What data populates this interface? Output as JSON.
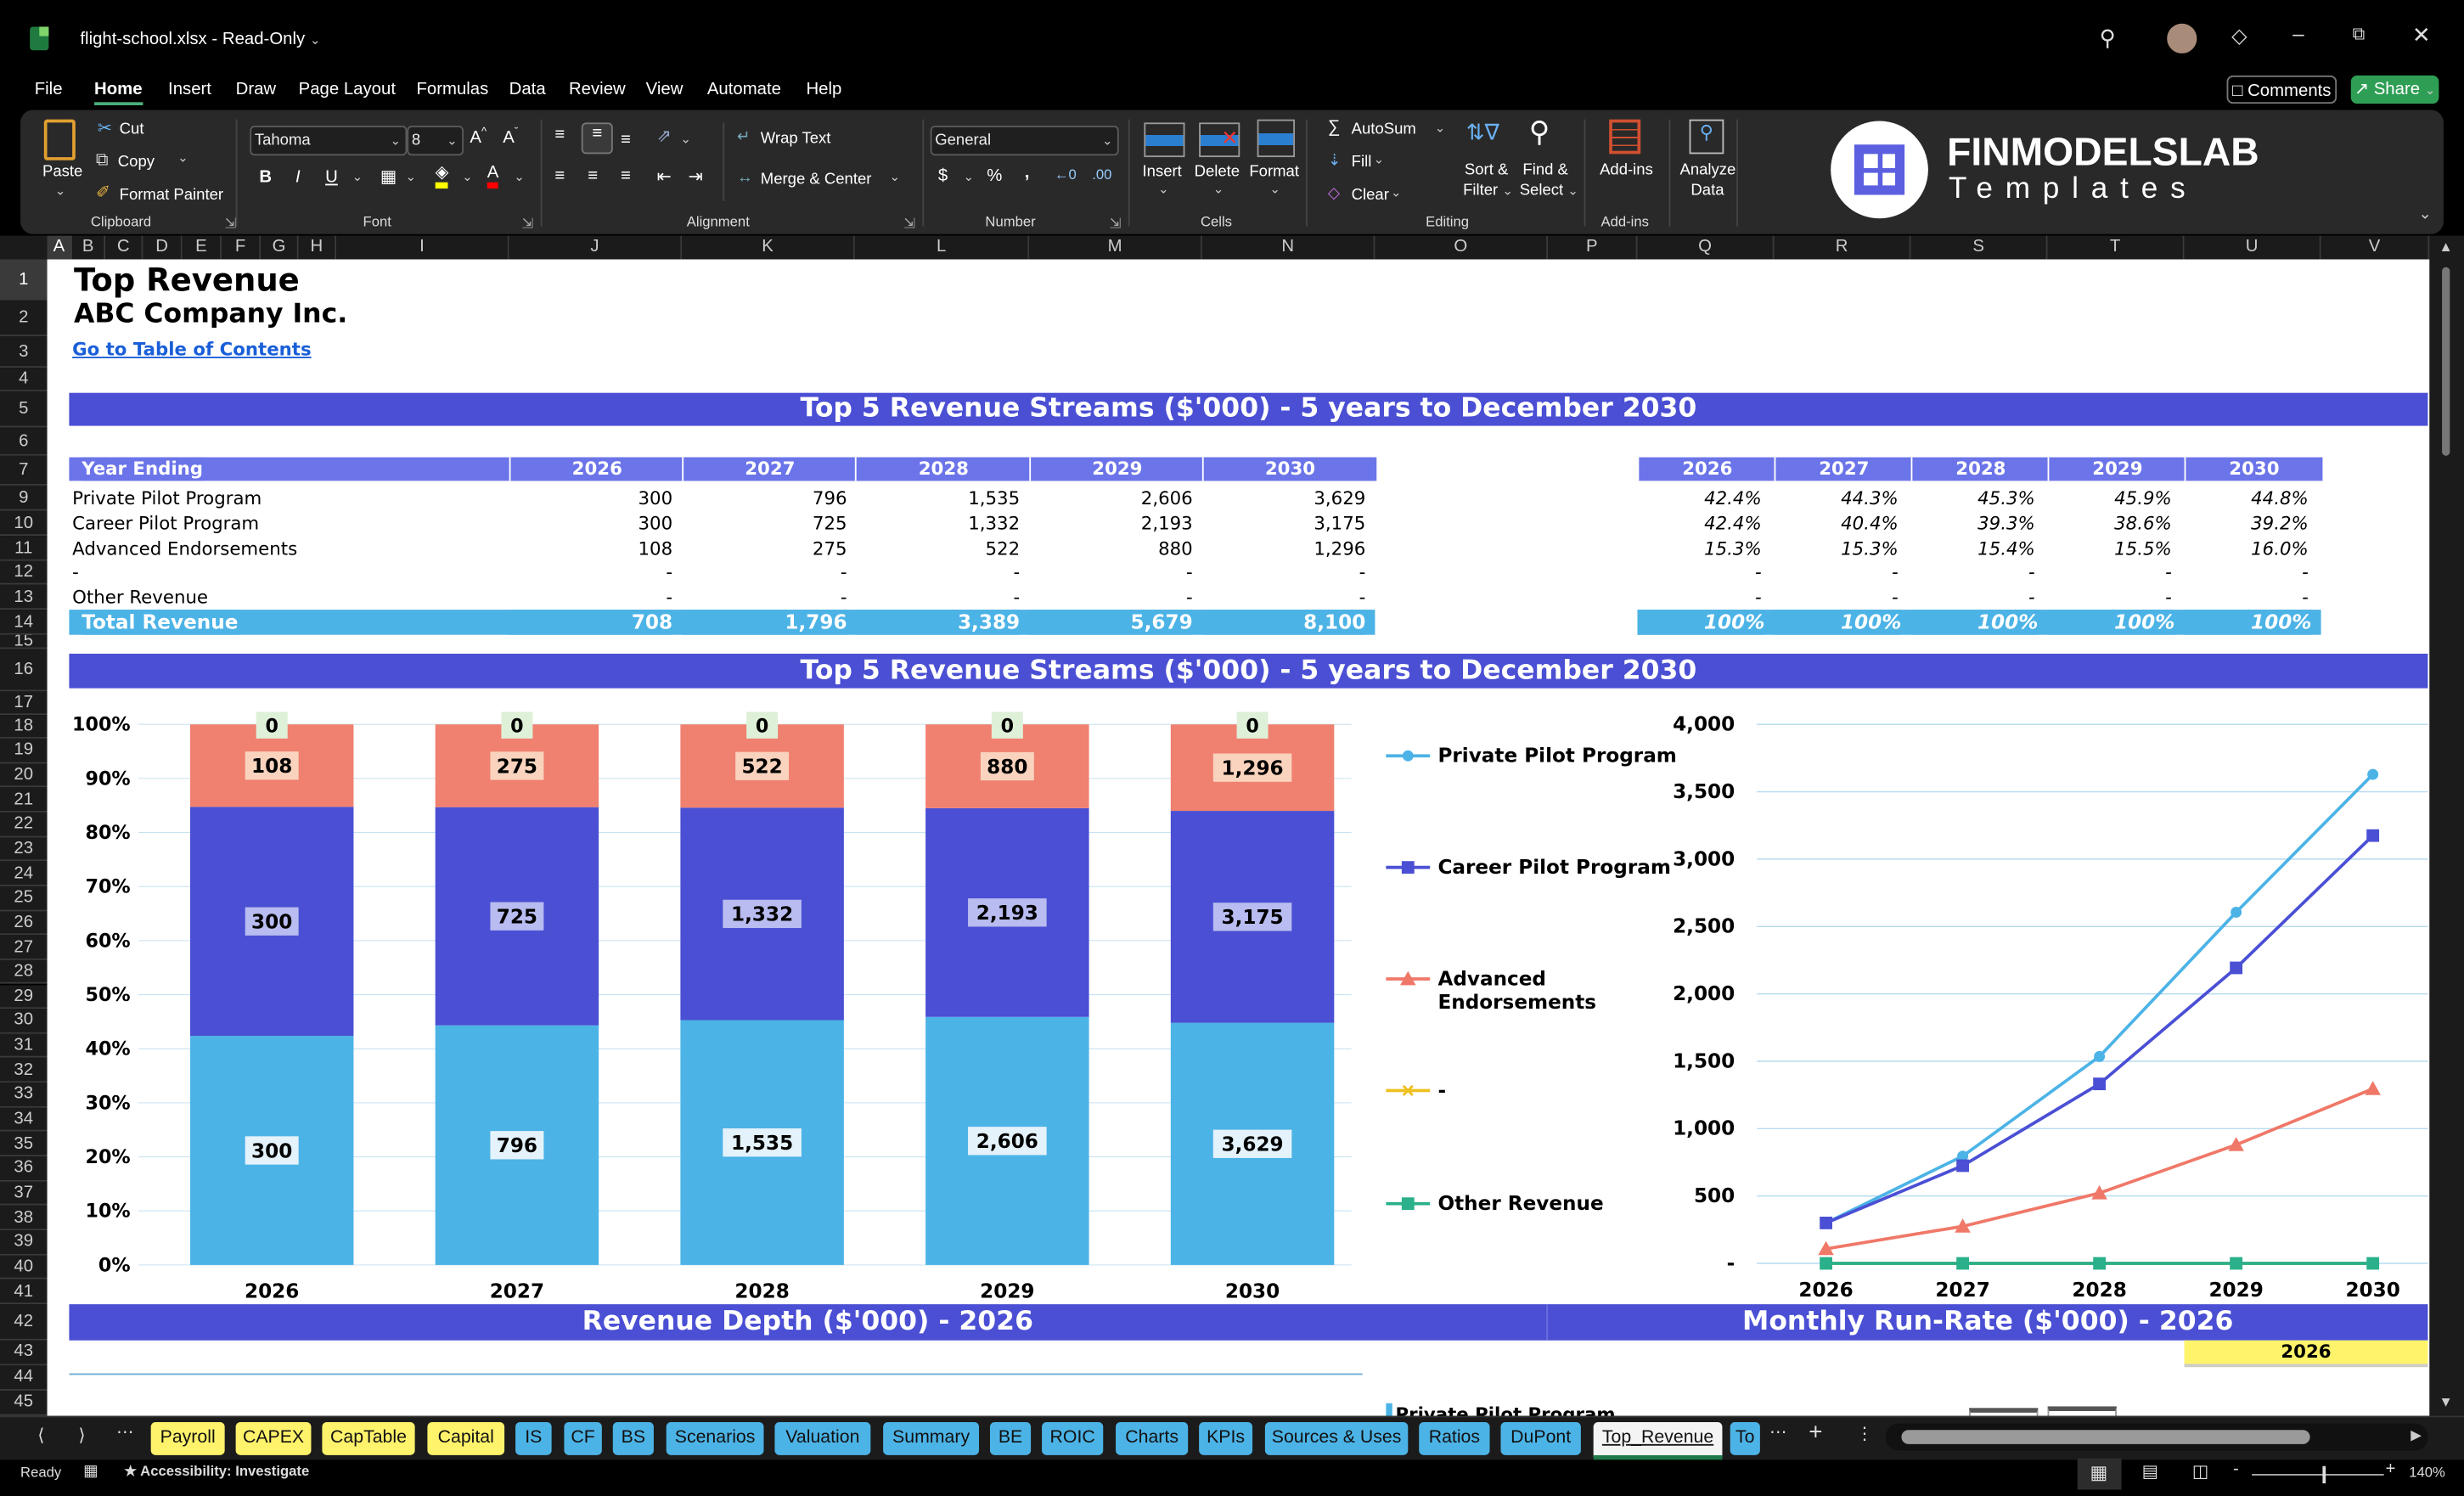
{
  "window": {
    "title": "flight-school.xlsx",
    "separator": "-",
    "mode": "Read-Only"
  },
  "menu": {
    "items": [
      "File",
      "Home",
      "Insert",
      "Draw",
      "Page Layout",
      "Formulas",
      "Data",
      "Review",
      "View",
      "Automate",
      "Help"
    ],
    "active": "Home"
  },
  "header_buttons": {
    "comments": "Comments",
    "share": "Share"
  },
  "ribbon": {
    "clipboard": {
      "paste": "Paste",
      "cut": "Cut",
      "copy": "Copy",
      "format_painter": "Format Painter",
      "label": "Clipboard"
    },
    "font": {
      "name": "Tahoma",
      "size": "8",
      "label": "Font",
      "fill_color": "#ffff00",
      "font_color": "#ff0000"
    },
    "alignment": {
      "wrap_text": "Wrap Text",
      "merge_center": "Merge & Center",
      "label": "Alignment"
    },
    "number": {
      "format": "General",
      "label": "Number"
    },
    "cells": {
      "insert": "Insert",
      "delete": "Delete",
      "format": "Format",
      "label": "Cells"
    },
    "editing": {
      "autosum": "AutoSum",
      "fill": "Fill",
      "clear": "Clear",
      "sort_filter_1": "Sort &",
      "sort_filter_2": "Filter",
      "find_select_1": "Find &",
      "find_select_2": "Select",
      "label": "Editing"
    },
    "addins": {
      "addins": "Add-ins",
      "label": "Add-ins",
      "analyze_1": "Analyze",
      "analyze_2": "Data"
    },
    "logo": {
      "brand": "FINMODELSLAB",
      "sub": "Templates"
    }
  },
  "columns": [
    "A",
    "B",
    "C",
    "D",
    "E",
    "F",
    "G",
    "H",
    "I",
    "J",
    "K",
    "L",
    "M",
    "N",
    "O",
    "P",
    "Q",
    "R",
    "S",
    "T",
    "U",
    "V"
  ],
  "row_numbers": [
    1,
    2,
    3,
    4,
    5,
    6,
    7,
    9,
    10,
    11,
    12,
    13,
    14,
    15,
    16,
    17,
    18,
    19,
    20,
    21,
    22,
    23,
    24,
    25,
    26,
    27,
    28,
    29,
    30,
    31,
    32,
    33,
    34,
    35,
    36,
    37,
    38,
    39,
    40,
    41,
    42,
    43,
    44,
    45
  ],
  "sheet": {
    "title": "Top Revenue",
    "company": "ABC Company Inc.",
    "toc_link": "Go to Table of Contents",
    "banner_table": "Top 5 Revenue Streams ($'000) - 5 years to December 2030",
    "banner_charts": "Top 5 Revenue Streams ($'000) - 5 years to December 2030",
    "banner_depth": "Revenue Depth ($'000) - 2026",
    "banner_runrate": "Monthly Run-Rate ($'000) - 2026",
    "runrate_year": "2026",
    "partial_legend": "Private Pilot Program",
    "table": {
      "header_label": "Year Ending",
      "years": [
        "2026",
        "2027",
        "2028",
        "2029",
        "2030"
      ],
      "rows": [
        {
          "label": "Private Pilot Program",
          "values": [
            "300",
            "796",
            "1,535",
            "2,606",
            "3,629"
          ]
        },
        {
          "label": "Career Pilot Program",
          "values": [
            "300",
            "725",
            "1,332",
            "2,193",
            "3,175"
          ]
        },
        {
          "label": "Advanced Endorsements",
          "values": [
            "108",
            "275",
            "522",
            "880",
            "1,296"
          ]
        },
        {
          "label": "-",
          "values": [
            "-",
            "-",
            "-",
            "-",
            "-"
          ]
        },
        {
          "label": "Other Revenue",
          "values": [
            "-",
            "-",
            "-",
            "-",
            "-"
          ]
        }
      ],
      "total": {
        "label": "Total Revenue",
        "values": [
          "708",
          "1,796",
          "3,389",
          "5,679",
          "8,100"
        ]
      }
    },
    "pct_table": {
      "years": [
        "2026",
        "2027",
        "2028",
        "2029",
        "2030"
      ],
      "rows": [
        [
          "42.4%",
          "44.3%",
          "45.3%",
          "45.9%",
          "44.8%"
        ],
        [
          "42.4%",
          "40.4%",
          "39.3%",
          "38.6%",
          "39.2%"
        ],
        [
          "15.3%",
          "15.3%",
          "15.4%",
          "15.5%",
          "16.0%"
        ],
        [
          "-",
          "-",
          "-",
          "-",
          "-"
        ],
        [
          "-",
          "-",
          "-",
          "-",
          "-"
        ]
      ],
      "total": [
        "100%",
        "100%",
        "100%",
        "100%",
        "100%"
      ]
    }
  },
  "chart_data": [
    {
      "type": "bar",
      "stacked": "percent",
      "categories": [
        "2026",
        "2027",
        "2028",
        "2029",
        "2030"
      ],
      "ylim": [
        0,
        100
      ],
      "yticks": [
        "0%",
        "10%",
        "20%",
        "30%",
        "40%",
        "50%",
        "60%",
        "70%",
        "80%",
        "90%",
        "100%"
      ],
      "series": [
        {
          "name": "Private Pilot Program",
          "values": [
            300,
            796,
            1535,
            2606,
            3629
          ],
          "labels": [
            "300",
            "796",
            "1,535",
            "2,606",
            "3,629"
          ],
          "color": "#4cb3e6"
        },
        {
          "name": "Career Pilot Program",
          "values": [
            300,
            725,
            1332,
            2193,
            3175
          ],
          "labels": [
            "300",
            "725",
            "1,332",
            "2,193",
            "3,175"
          ],
          "color": "#4a4fd4"
        },
        {
          "name": "Advanced Endorsements",
          "values": [
            108,
            275,
            522,
            880,
            1296
          ],
          "labels": [
            "108",
            "275",
            "522",
            "880",
            "1,296"
          ],
          "color": "#f08070"
        },
        {
          "name": "-",
          "values": [
            0,
            0,
            0,
            0,
            0
          ],
          "color": "#f0c020"
        },
        {
          "name": "Other Revenue",
          "values": [
            0,
            0,
            0,
            0,
            0
          ],
          "labels": [
            "0",
            "0",
            "0",
            "0",
            "0"
          ],
          "color": "#2ab08a"
        }
      ]
    },
    {
      "type": "line",
      "categories": [
        "2026",
        "2027",
        "2028",
        "2029",
        "2030"
      ],
      "ylim": [
        0,
        4000
      ],
      "yticks": [
        "-",
        "500",
        "1,000",
        "1,500",
        "2,000",
        "2,500",
        "3,000",
        "3,500",
        "4,000"
      ],
      "grid": true,
      "legend": "left",
      "series": [
        {
          "name": "Private Pilot Program",
          "values": [
            300,
            796,
            1535,
            2606,
            3629
          ],
          "color": "#4cb3e6",
          "marker": "circle"
        },
        {
          "name": "Career Pilot Program",
          "values": [
            300,
            725,
            1332,
            2193,
            3175
          ],
          "color": "#4a4fd4",
          "marker": "square"
        },
        {
          "name": "Advanced Endorsements",
          "values": [
            108,
            275,
            522,
            880,
            1296
          ],
          "color": "#f07868",
          "marker": "triangle"
        },
        {
          "name": "-",
          "values": [
            0,
            0,
            0,
            0,
            0
          ],
          "color": "#f0c020",
          "marker": "x"
        },
        {
          "name": "Other Revenue",
          "values": [
            0,
            0,
            0,
            0,
            0
          ],
          "color": "#2ab08a",
          "marker": "square"
        }
      ]
    }
  ],
  "tabs": [
    {
      "label": "Payroll",
      "color": "#fff36b"
    },
    {
      "label": "CAPEX",
      "color": "#fff36b"
    },
    {
      "label": "CapTable",
      "color": "#fff36b"
    },
    {
      "label": "Capital",
      "color": "#fff36b"
    },
    {
      "label": "IS",
      "color": "#4cb3e6"
    },
    {
      "label": "CF",
      "color": "#4cb3e6"
    },
    {
      "label": "BS",
      "color": "#4cb3e6"
    },
    {
      "label": "Scenarios",
      "color": "#4cb3e6"
    },
    {
      "label": "Valuation",
      "color": "#4cb3e6"
    },
    {
      "label": "Summary",
      "color": "#4cb3e6"
    },
    {
      "label": "BE",
      "color": "#4cb3e6"
    },
    {
      "label": "ROIC",
      "color": "#4cb3e6"
    },
    {
      "label": "Charts",
      "color": "#4cb3e6"
    },
    {
      "label": "KPIs",
      "color": "#4cb3e6"
    },
    {
      "label": "Sources & Uses",
      "color": "#4cb3e6"
    },
    {
      "label": "Ratios",
      "color": "#4cb3e6"
    },
    {
      "label": "DuPont",
      "color": "#4cb3e6"
    },
    {
      "label": "Top_Revenue",
      "color": "#ffffff",
      "active": true
    },
    {
      "label": "To",
      "color": "#4cb3e6"
    }
  ],
  "status": {
    "ready": "Ready",
    "accessibility": "Accessibility: Investigate",
    "zoom": "140%",
    "zoom_level": 140
  }
}
